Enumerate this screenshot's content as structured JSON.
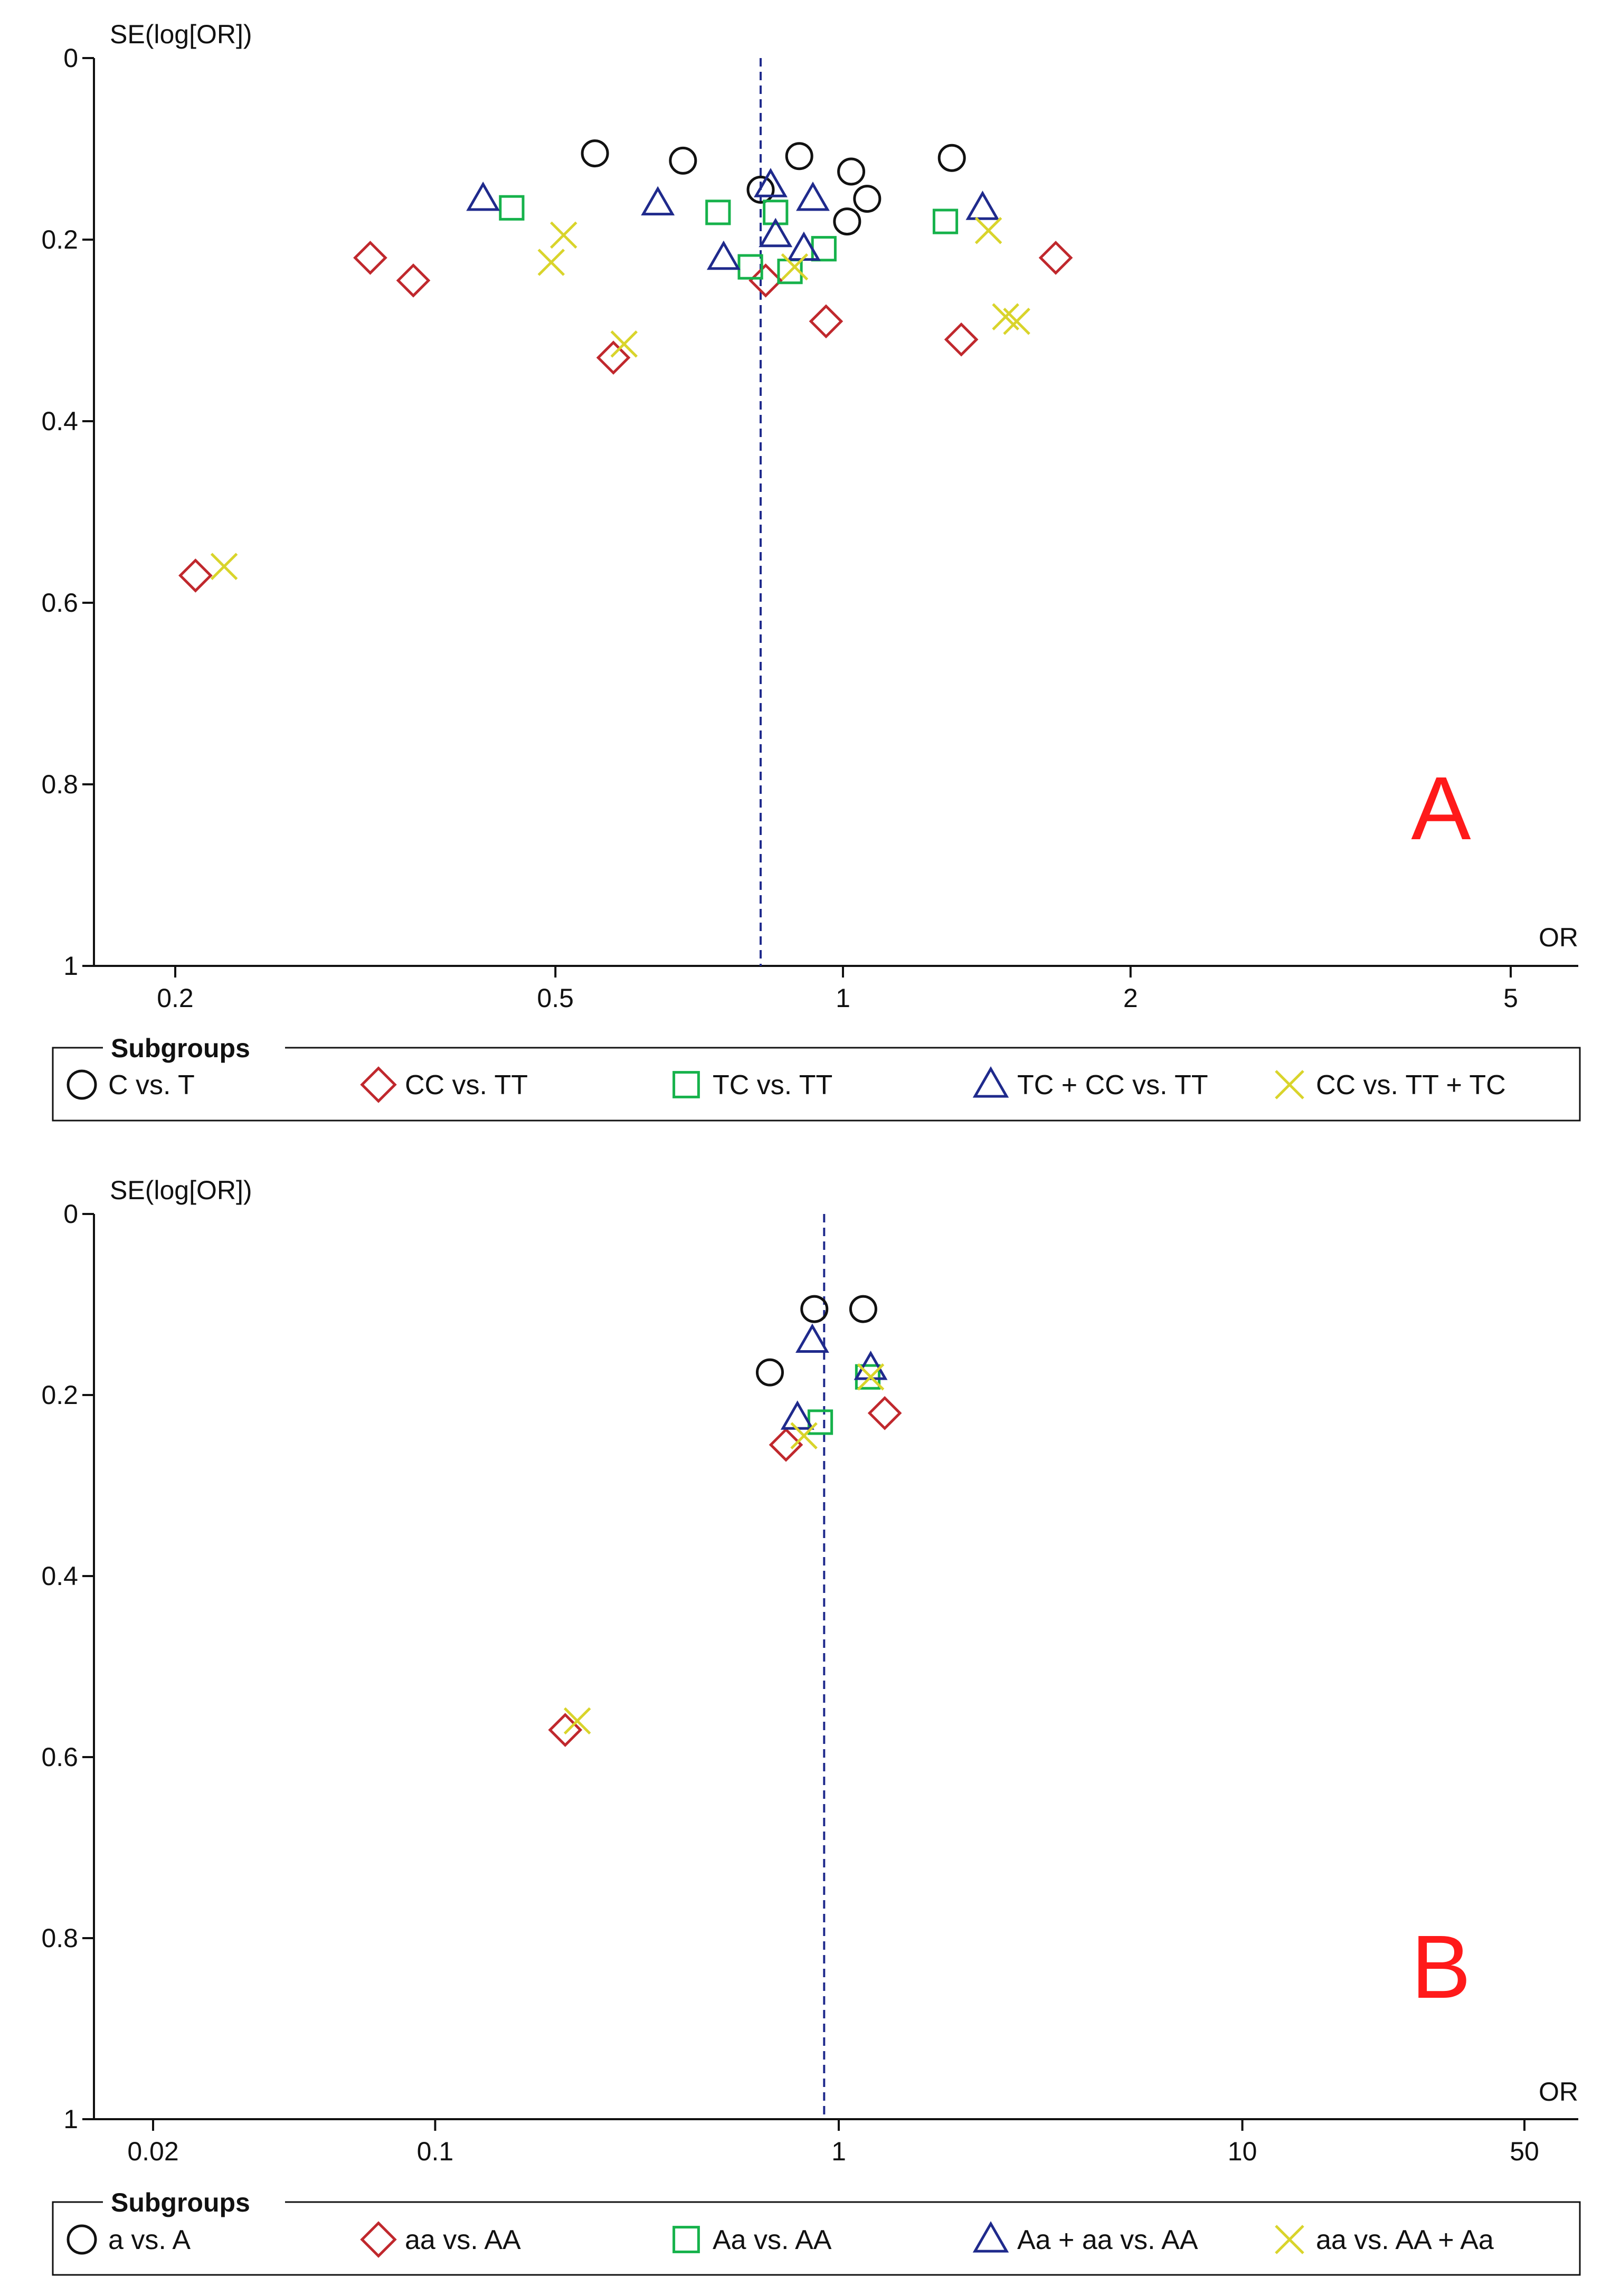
{
  "chart_data": [
    {
      "type": "scatter",
      "panel_label": "A",
      "ylabel": "SE(log[OR])",
      "xlabel": "OR",
      "x_scale": "log",
      "xlim": [
        0.16,
        6.0
      ],
      "ylim": [
        0,
        1
      ],
      "y_inverted": true,
      "x_ticks": [
        0.2,
        0.5,
        1,
        2,
        5
      ],
      "x_tick_labels": [
        "0.2",
        "0.5",
        "1",
        "2",
        "5"
      ],
      "y_ticks": [
        0,
        0.2,
        0.4,
        0.6,
        0.8,
        1
      ],
      "y_tick_labels": [
        "0",
        "0.2",
        "0.4",
        "0.6",
        "0.8",
        "1"
      ],
      "reference_line_or": 0.82,
      "legend_title": "Subgroups",
      "legend_placement": "bottom",
      "series": [
        {
          "name": "C vs. T",
          "marker": "circle",
          "color": "#111111",
          "points": [
            [
              0.55,
              0.105
            ],
            [
              0.68,
              0.113
            ],
            [
              0.82,
              0.145
            ],
            [
              0.9,
              0.108
            ],
            [
              1.02,
              0.125
            ],
            [
              1.06,
              0.155
            ],
            [
              1.01,
              0.18
            ],
            [
              1.3,
              0.11
            ]
          ]
        },
        {
          "name": "CC vs. TT",
          "marker": "diamond",
          "color": "#c0282d",
          "points": [
            [
              0.32,
              0.22
            ],
            [
              0.355,
              0.245
            ],
            [
              0.83,
              0.245
            ],
            [
              0.96,
              0.29
            ],
            [
              0.575,
              0.33
            ],
            [
              1.33,
              0.31
            ],
            [
              1.67,
              0.22
            ],
            [
              0.21,
              0.57
            ]
          ]
        },
        {
          "name": "TC vs. TT",
          "marker": "square",
          "color": "#16b24b",
          "points": [
            [
              0.45,
              0.165
            ],
            [
              0.74,
              0.17
            ],
            [
              0.85,
              0.17
            ],
            [
              0.955,
              0.21
            ],
            [
              0.8,
              0.23
            ],
            [
              0.88,
              0.235
            ],
            [
              1.28,
              0.18
            ]
          ]
        },
        {
          "name": "TC + CC vs. TT",
          "marker": "triangle",
          "color": "#1f2a8c",
          "points": [
            [
              0.42,
              0.155
            ],
            [
              0.64,
              0.16
            ],
            [
              0.84,
              0.14
            ],
            [
              0.93,
              0.155
            ],
            [
              0.75,
              0.22
            ],
            [
              0.85,
              0.195
            ],
            [
              0.91,
              0.21
            ],
            [
              1.4,
              0.165
            ]
          ]
        },
        {
          "name": "CC vs. TT + TC",
          "marker": "cross",
          "color": "#d9d42b",
          "points": [
            [
              0.51,
              0.195
            ],
            [
              0.495,
              0.225
            ],
            [
              0.59,
              0.315
            ],
            [
              0.89,
              0.23
            ],
            [
              1.42,
              0.19
            ],
            [
              1.48,
              0.285
            ],
            [
              1.52,
              0.29
            ],
            [
              0.225,
              0.56
            ]
          ]
        }
      ]
    },
    {
      "type": "scatter",
      "panel_label": "B",
      "ylabel": "SE(log[OR])",
      "xlabel": "OR",
      "x_scale": "log",
      "xlim": [
        0.013,
        70
      ],
      "ylim": [
        0,
        1
      ],
      "y_inverted": true,
      "x_ticks": [
        0.02,
        0.1,
        1,
        10,
        50
      ],
      "x_tick_labels": [
        "0.02",
        "0.1",
        "1",
        "10",
        "50"
      ],
      "y_ticks": [
        0,
        0.2,
        0.4,
        0.6,
        0.8,
        1
      ],
      "y_tick_labels": [
        "0",
        "0.2",
        "0.4",
        "0.6",
        "0.8",
        "1"
      ],
      "reference_line_or": 0.92,
      "legend_title": "Subgroups",
      "legend_placement": "bottom",
      "series": [
        {
          "name": "a vs. A",
          "marker": "circle",
          "color": "#111111",
          "points": [
            [
              0.87,
              0.105
            ],
            [
              1.15,
              0.105
            ],
            [
              0.675,
              0.175
            ]
          ]
        },
        {
          "name": "aa vs. AA",
          "marker": "diamond",
          "color": "#c0282d",
          "points": [
            [
              1.3,
              0.22
            ],
            [
              0.74,
              0.255
            ],
            [
              0.21,
              0.57
            ]
          ]
        },
        {
          "name": "Aa vs. AA",
          "marker": "square",
          "color": "#16b24b",
          "points": [
            [
              1.18,
              0.18
            ],
            [
              0.9,
              0.23
            ]
          ]
        },
        {
          "name": "Aa + aa vs. AA",
          "marker": "triangle",
          "color": "#1f2a8c",
          "points": [
            [
              0.86,
              0.14
            ],
            [
              1.2,
              0.17
            ],
            [
              0.79,
              0.225
            ]
          ]
        },
        {
          "name": "aa vs. AA + Aa",
          "marker": "cross",
          "color": "#d9d42b",
          "points": [
            [
              1.2,
              0.18
            ],
            [
              0.82,
              0.245
            ],
            [
              0.225,
              0.56
            ]
          ]
        }
      ]
    }
  ]
}
